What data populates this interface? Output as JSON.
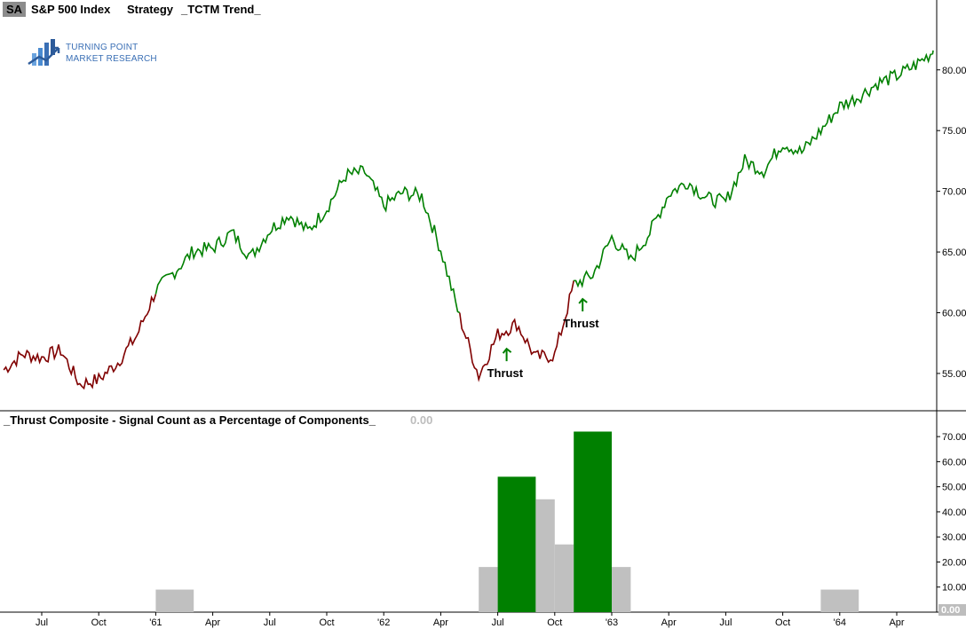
{
  "header": {
    "symbol": "SA",
    "title": "S&P 500 Index",
    "strategy": "Strategy",
    "strategy_name": "_TCTM Trend_"
  },
  "logo": {
    "line1": "TURNING POINT",
    "line2": "MARKET RESEARCH"
  },
  "indicator": {
    "title": "_Thrust Composite - Signal Count as a Percentage of Components_",
    "value": "0.00"
  },
  "colors": {
    "uptrend": "#008000",
    "downtrend": "#800000",
    "signal_bar": "#008000",
    "inactive_bar": "#c0c0c0",
    "last_value_box": "#bdbdbd"
  },
  "chart_data": [
    {
      "type": "line",
      "title": "S&P 500 Index",
      "ylim": [
        52,
        84
      ],
      "y_ticks": [
        "55.00",
        "60.00",
        "65.00",
        "70.00",
        "75.00",
        "80.00"
      ],
      "x_ticks": [
        "Jul",
        "Oct",
        "'61",
        "Apr",
        "Jul",
        "Oct",
        "'62",
        "Apr",
        "Jul",
        "Oct",
        "'63",
        "Apr",
        "Jul",
        "Oct",
        "'64",
        "Apr"
      ],
      "series": [
        {
          "values": [
            {
              "x": "1960-05",
              "y": 55.3
            },
            {
              "x": "1960-06",
              "y": 56.6
            },
            {
              "x": "1960-07",
              "y": 56.3
            },
            {
              "x": "1960-08",
              "y": 56.9
            },
            {
              "x": "1960-09",
              "y": 54.1
            },
            {
              "x": "1960-10",
              "y": 54.5
            },
            {
              "x": "1960-11",
              "y": 55.9
            },
            {
              "x": "1960-12",
              "y": 58.1
            },
            {
              "x": "1961-01",
              "y": 61.8
            },
            {
              "x": "1961-02",
              "y": 63.4
            },
            {
              "x": "1961-03",
              "y": 65.1
            },
            {
              "x": "1961-04",
              "y": 65.3
            },
            {
              "x": "1961-05",
              "y": 66.6
            },
            {
              "x": "1961-06",
              "y": 64.6
            },
            {
              "x": "1961-07",
              "y": 66.8
            },
            {
              "x": "1961-08",
              "y": 68.1
            },
            {
              "x": "1961-09",
              "y": 66.7
            },
            {
              "x": "1961-10",
              "y": 68.6
            },
            {
              "x": "1961-11",
              "y": 71.3
            },
            {
              "x": "1961-12",
              "y": 71.6
            },
            {
              "x": "1962-01",
              "y": 68.8
            },
            {
              "x": "1962-02",
              "y": 69.9
            },
            {
              "x": "1962-03",
              "y": 69.6
            },
            {
              "x": "1962-04",
              "y": 65.2
            },
            {
              "x": "1962-05",
              "y": 59.6
            },
            {
              "x": "1962-06",
              "y": 54.8
            },
            {
              "x": "1962-07",
              "y": 58.2
            },
            {
              "x": "1962-08",
              "y": 59.1
            },
            {
              "x": "1962-09",
              "y": 56.3
            },
            {
              "x": "1962-10",
              "y": 56.5
            },
            {
              "x": "1962-11",
              "y": 62.3
            },
            {
              "x": "1962-12",
              "y": 63.1
            },
            {
              "x": "1963-01",
              "y": 66.2
            },
            {
              "x": "1963-02",
              "y": 64.3
            },
            {
              "x": "1963-03",
              "y": 66.6
            },
            {
              "x": "1963-04",
              "y": 69.8
            },
            {
              "x": "1963-05",
              "y": 70.8
            },
            {
              "x": "1963-06",
              "y": 69.4
            },
            {
              "x": "1963-07",
              "y": 69.1
            },
            {
              "x": "1963-08",
              "y": 72.5
            },
            {
              "x": "1963-09",
              "y": 71.7
            },
            {
              "x": "1963-10",
              "y": 74.0
            },
            {
              "x": "1963-11",
              "y": 73.2
            },
            {
              "x": "1963-12",
              "y": 75.0
            },
            {
              "x": "1964-01",
              "y": 77.0
            },
            {
              "x": "1964-02",
              "y": 77.8
            },
            {
              "x": "1964-03",
              "y": 78.9
            },
            {
              "x": "1964-04",
              "y": 79.5
            },
            {
              "x": "1964-05",
              "y": 80.4
            },
            {
              "x": "1964-06",
              "y": 81.6
            }
          ]
        }
      ],
      "annotations": [
        {
          "text": "Thrust",
          "x": "1962-07"
        },
        {
          "text": "Thrust",
          "x": "1962-11"
        }
      ]
    },
    {
      "type": "bar",
      "title": "_Thrust Composite - Signal Count as a Percentage of Components_",
      "ylim": [
        0,
        75
      ],
      "y_ticks": [
        "10.00",
        "20.00",
        "30.00",
        "40.00",
        "50.00",
        "60.00",
        "70.00"
      ],
      "last_value": "0.00",
      "bars": [
        {
          "start": "1961-01",
          "end": "1961-03",
          "value": 9,
          "signal": false
        },
        {
          "start": "1962-06",
          "end": "1962-07",
          "value": 18,
          "signal": false
        },
        {
          "start": "1962-07",
          "end": "1962-09",
          "value": 54,
          "signal": true
        },
        {
          "start": "1962-09",
          "end": "1962-10",
          "value": 45,
          "signal": false
        },
        {
          "start": "1962-10",
          "end": "1962-11",
          "value": 27,
          "signal": false
        },
        {
          "start": "1962-11",
          "end": "1963-01",
          "value": 72,
          "signal": true
        },
        {
          "start": "1963-01",
          "end": "1963-02",
          "value": 18,
          "signal": false
        },
        {
          "start": "1963-12",
          "end": "1964-02",
          "value": 9,
          "signal": false
        }
      ]
    }
  ]
}
